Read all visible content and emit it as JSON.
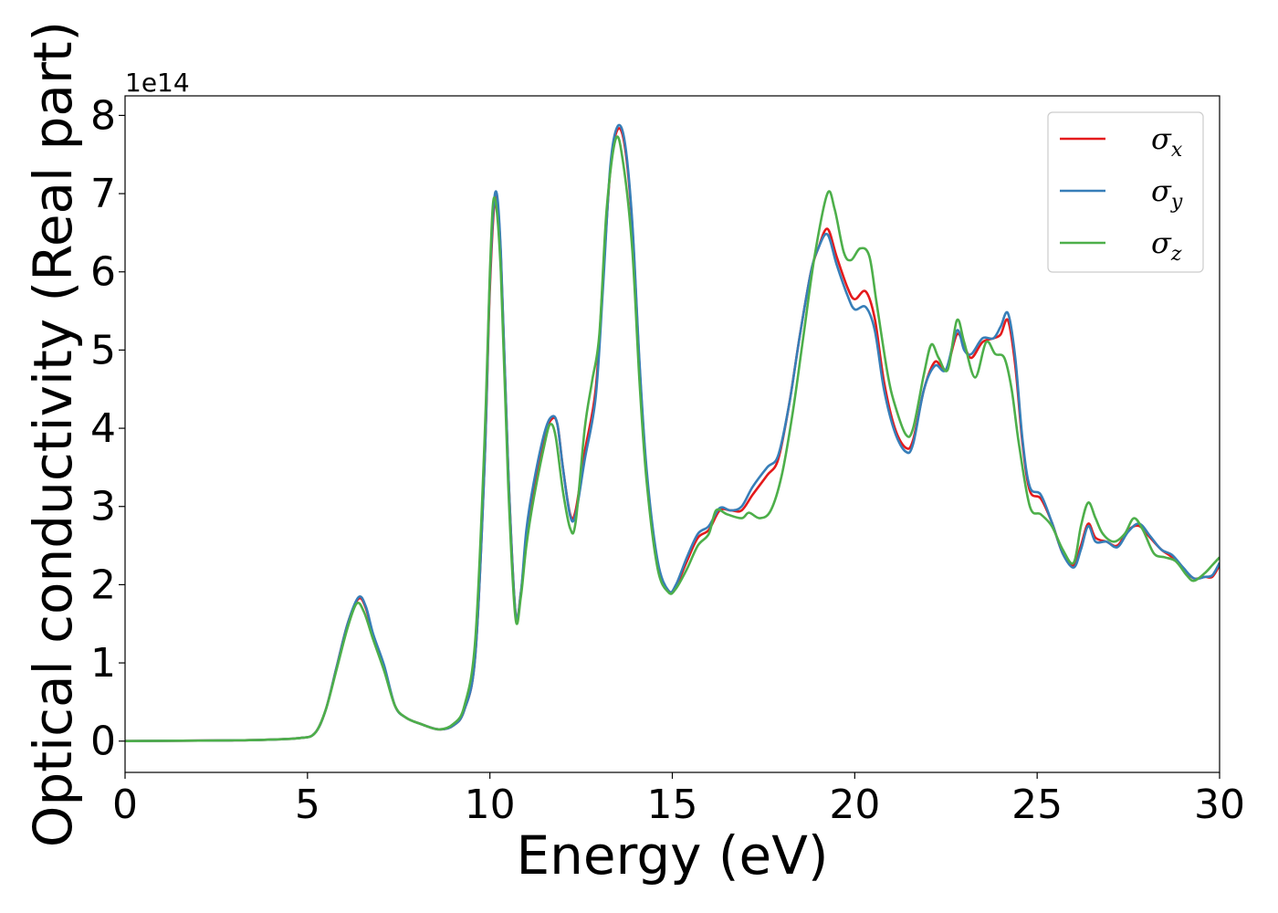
{
  "chart_data": {
    "type": "line",
    "xlabel": "Energy (eV)",
    "ylabel": "Optical conductivity (Real part)",
    "y_offset_label": "1e14",
    "xlim": [
      0,
      30
    ],
    "ylim": [
      -0.4,
      8.25
    ],
    "x_ticks": [
      0,
      5,
      10,
      15,
      20,
      25,
      30
    ],
    "y_ticks": [
      0,
      1,
      2,
      3,
      4,
      5,
      6,
      7,
      8
    ],
    "grid": false,
    "legend_position": "top-right",
    "series": [
      {
        "name": "σ",
        "subscript": "x",
        "color": "#e41a1c",
        "points": [
          [
            0,
            0
          ],
          [
            3,
            0.01
          ],
          [
            4,
            0.02
          ],
          [
            4.8,
            0.04
          ],
          [
            5.2,
            0.1
          ],
          [
            5.5,
            0.4
          ],
          [
            5.8,
            0.95
          ],
          [
            6.1,
            1.5
          ],
          [
            6.4,
            1.82
          ],
          [
            6.6,
            1.7
          ],
          [
            6.8,
            1.35
          ],
          [
            7.1,
            0.95
          ],
          [
            7.4,
            0.45
          ],
          [
            7.7,
            0.3
          ],
          [
            8.1,
            0.22
          ],
          [
            8.6,
            0.15
          ],
          [
            9.0,
            0.2
          ],
          [
            9.3,
            0.4
          ],
          [
            9.6,
            1.1
          ],
          [
            9.85,
            3.5
          ],
          [
            10.0,
            5.8
          ],
          [
            10.15,
            6.95
          ],
          [
            10.3,
            6.2
          ],
          [
            10.5,
            3.5
          ],
          [
            10.7,
            1.65
          ],
          [
            10.85,
            1.9
          ],
          [
            11.0,
            2.6
          ],
          [
            11.2,
            3.2
          ],
          [
            11.5,
            3.9
          ],
          [
            11.7,
            4.12
          ],
          [
            11.85,
            4.05
          ],
          [
            12.0,
            3.5
          ],
          [
            12.2,
            2.9
          ],
          [
            12.35,
            2.95
          ],
          [
            12.6,
            3.7
          ],
          [
            12.9,
            4.5
          ],
          [
            13.1,
            5.9
          ],
          [
            13.3,
            7.3
          ],
          [
            13.5,
            7.82
          ],
          [
            13.7,
            7.6
          ],
          [
            13.9,
            6.6
          ],
          [
            14.1,
            4.8
          ],
          [
            14.3,
            3.4
          ],
          [
            14.6,
            2.25
          ],
          [
            14.9,
            1.92
          ],
          [
            15.1,
            1.98
          ],
          [
            15.4,
            2.3
          ],
          [
            15.7,
            2.6
          ],
          [
            16.0,
            2.7
          ],
          [
            16.3,
            2.95
          ],
          [
            16.6,
            2.95
          ],
          [
            16.9,
            2.95
          ],
          [
            17.2,
            3.15
          ],
          [
            17.6,
            3.4
          ],
          [
            17.9,
            3.6
          ],
          [
            18.2,
            4.3
          ],
          [
            18.5,
            5.2
          ],
          [
            18.8,
            6.0
          ],
          [
            19.0,
            6.3
          ],
          [
            19.25,
            6.55
          ],
          [
            19.5,
            6.2
          ],
          [
            19.8,
            5.8
          ],
          [
            20.0,
            5.65
          ],
          [
            20.3,
            5.75
          ],
          [
            20.55,
            5.4
          ],
          [
            20.8,
            4.6
          ],
          [
            21.1,
            4.0
          ],
          [
            21.4,
            3.75
          ],
          [
            21.6,
            3.85
          ],
          [
            21.9,
            4.5
          ],
          [
            22.2,
            4.85
          ],
          [
            22.5,
            4.75
          ],
          [
            22.8,
            5.2
          ],
          [
            23.0,
            5.05
          ],
          [
            23.2,
            4.9
          ],
          [
            23.5,
            5.1
          ],
          [
            23.8,
            5.15
          ],
          [
            24.0,
            5.2
          ],
          [
            24.2,
            5.38
          ],
          [
            24.4,
            4.8
          ],
          [
            24.6,
            3.8
          ],
          [
            24.8,
            3.2
          ],
          [
            25.1,
            3.1
          ],
          [
            25.4,
            2.8
          ],
          [
            25.7,
            2.4
          ],
          [
            26.0,
            2.25
          ],
          [
            26.2,
            2.5
          ],
          [
            26.4,
            2.78
          ],
          [
            26.6,
            2.6
          ],
          [
            26.9,
            2.55
          ],
          [
            27.2,
            2.5
          ],
          [
            27.5,
            2.7
          ],
          [
            27.8,
            2.75
          ],
          [
            28.1,
            2.6
          ],
          [
            28.4,
            2.45
          ],
          [
            28.7,
            2.35
          ],
          [
            29.0,
            2.2
          ],
          [
            29.3,
            2.08
          ],
          [
            29.6,
            2.1
          ],
          [
            29.8,
            2.1
          ],
          [
            30.0,
            2.25
          ]
        ]
      },
      {
        "name": "σ",
        "subscript": "y",
        "color": "#377eb8",
        "points": [
          [
            0,
            0
          ],
          [
            3,
            0.01
          ],
          [
            4,
            0.02
          ],
          [
            4.8,
            0.04
          ],
          [
            5.2,
            0.1
          ],
          [
            5.5,
            0.4
          ],
          [
            5.8,
            0.95
          ],
          [
            6.1,
            1.5
          ],
          [
            6.4,
            1.84
          ],
          [
            6.6,
            1.72
          ],
          [
            6.8,
            1.37
          ],
          [
            7.1,
            0.97
          ],
          [
            7.4,
            0.45
          ],
          [
            7.7,
            0.3
          ],
          [
            8.1,
            0.22
          ],
          [
            8.6,
            0.15
          ],
          [
            9.0,
            0.2
          ],
          [
            9.3,
            0.4
          ],
          [
            9.6,
            1.1
          ],
          [
            9.85,
            3.5
          ],
          [
            10.0,
            5.9
          ],
          [
            10.15,
            7.02
          ],
          [
            10.3,
            6.25
          ],
          [
            10.5,
            3.5
          ],
          [
            10.7,
            1.65
          ],
          [
            10.85,
            1.9
          ],
          [
            11.0,
            2.7
          ],
          [
            11.2,
            3.3
          ],
          [
            11.5,
            3.95
          ],
          [
            11.7,
            4.15
          ],
          [
            11.85,
            4.05
          ],
          [
            12.0,
            3.5
          ],
          [
            12.2,
            2.88
          ],
          [
            12.35,
            2.9
          ],
          [
            12.6,
            3.6
          ],
          [
            12.9,
            4.4
          ],
          [
            13.1,
            5.8
          ],
          [
            13.3,
            7.35
          ],
          [
            13.5,
            7.86
          ],
          [
            13.7,
            7.65
          ],
          [
            13.9,
            6.65
          ],
          [
            14.1,
            4.85
          ],
          [
            14.3,
            3.45
          ],
          [
            14.6,
            2.3
          ],
          [
            14.9,
            1.92
          ],
          [
            15.1,
            2.0
          ],
          [
            15.4,
            2.35
          ],
          [
            15.7,
            2.65
          ],
          [
            16.0,
            2.75
          ],
          [
            16.3,
            2.98
          ],
          [
            16.6,
            2.95
          ],
          [
            16.9,
            3.0
          ],
          [
            17.2,
            3.25
          ],
          [
            17.6,
            3.5
          ],
          [
            17.9,
            3.65
          ],
          [
            18.2,
            4.3
          ],
          [
            18.5,
            5.2
          ],
          [
            18.8,
            6.0
          ],
          [
            19.0,
            6.3
          ],
          [
            19.25,
            6.48
          ],
          [
            19.5,
            6.1
          ],
          [
            19.8,
            5.7
          ],
          [
            20.0,
            5.52
          ],
          [
            20.3,
            5.55
          ],
          [
            20.55,
            5.25
          ],
          [
            20.8,
            4.5
          ],
          [
            21.1,
            3.95
          ],
          [
            21.4,
            3.7
          ],
          [
            21.6,
            3.8
          ],
          [
            21.9,
            4.5
          ],
          [
            22.2,
            4.8
          ],
          [
            22.5,
            4.75
          ],
          [
            22.8,
            5.25
          ],
          [
            23.0,
            5.0
          ],
          [
            23.2,
            4.95
          ],
          [
            23.5,
            5.15
          ],
          [
            23.8,
            5.15
          ],
          [
            24.0,
            5.3
          ],
          [
            24.2,
            5.47
          ],
          [
            24.4,
            4.9
          ],
          [
            24.6,
            3.85
          ],
          [
            24.8,
            3.25
          ],
          [
            25.1,
            3.15
          ],
          [
            25.4,
            2.8
          ],
          [
            25.7,
            2.4
          ],
          [
            26.0,
            2.22
          ],
          [
            26.2,
            2.45
          ],
          [
            26.4,
            2.75
          ],
          [
            26.6,
            2.55
          ],
          [
            26.9,
            2.55
          ],
          [
            27.2,
            2.48
          ],
          [
            27.5,
            2.68
          ],
          [
            27.8,
            2.78
          ],
          [
            28.1,
            2.62
          ],
          [
            28.4,
            2.45
          ],
          [
            28.7,
            2.38
          ],
          [
            29.0,
            2.22
          ],
          [
            29.3,
            2.08
          ],
          [
            29.6,
            2.1
          ],
          [
            29.8,
            2.12
          ],
          [
            30.0,
            2.28
          ]
        ]
      },
      {
        "name": "σ",
        "subscript": "z",
        "color": "#4daf4a",
        "points": [
          [
            0,
            0
          ],
          [
            3,
            0.01
          ],
          [
            4,
            0.02
          ],
          [
            4.8,
            0.04
          ],
          [
            5.2,
            0.1
          ],
          [
            5.5,
            0.4
          ],
          [
            5.8,
            0.92
          ],
          [
            6.1,
            1.45
          ],
          [
            6.35,
            1.76
          ],
          [
            6.55,
            1.65
          ],
          [
            6.8,
            1.3
          ],
          [
            7.1,
            0.9
          ],
          [
            7.4,
            0.45
          ],
          [
            7.7,
            0.3
          ],
          [
            8.1,
            0.22
          ],
          [
            8.6,
            0.15
          ],
          [
            9.0,
            0.22
          ],
          [
            9.3,
            0.45
          ],
          [
            9.6,
            1.3
          ],
          [
            9.85,
            3.8
          ],
          [
            10.0,
            6.0
          ],
          [
            10.12,
            6.95
          ],
          [
            10.3,
            6.0
          ],
          [
            10.5,
            3.3
          ],
          [
            10.7,
            1.58
          ],
          [
            10.85,
            1.85
          ],
          [
            11.0,
            2.5
          ],
          [
            11.2,
            3.1
          ],
          [
            11.5,
            3.8
          ],
          [
            11.65,
            4.05
          ],
          [
            11.8,
            3.9
          ],
          [
            12.0,
            3.2
          ],
          [
            12.2,
            2.72
          ],
          [
            12.35,
            2.8
          ],
          [
            12.6,
            4.0
          ],
          [
            12.8,
            4.6
          ],
          [
            13.0,
            5.2
          ],
          [
            13.2,
            6.8
          ],
          [
            13.45,
            7.7
          ],
          [
            13.65,
            7.4
          ],
          [
            13.9,
            6.3
          ],
          [
            14.1,
            4.6
          ],
          [
            14.3,
            3.3
          ],
          [
            14.6,
            2.2
          ],
          [
            14.9,
            1.9
          ],
          [
            15.1,
            1.95
          ],
          [
            15.4,
            2.2
          ],
          [
            15.7,
            2.5
          ],
          [
            16.0,
            2.65
          ],
          [
            16.2,
            2.95
          ],
          [
            16.5,
            2.9
          ],
          [
            16.9,
            2.85
          ],
          [
            17.1,
            2.92
          ],
          [
            17.4,
            2.85
          ],
          [
            17.7,
            2.95
          ],
          [
            18.0,
            3.4
          ],
          [
            18.3,
            4.2
          ],
          [
            18.6,
            5.2
          ],
          [
            18.9,
            6.2
          ],
          [
            19.25,
            7.0
          ],
          [
            19.45,
            6.8
          ],
          [
            19.7,
            6.25
          ],
          [
            19.9,
            6.15
          ],
          [
            20.15,
            6.3
          ],
          [
            20.4,
            6.2
          ],
          [
            20.6,
            5.6
          ],
          [
            20.9,
            4.7
          ],
          [
            21.1,
            4.3
          ],
          [
            21.4,
            3.92
          ],
          [
            21.6,
            4.0
          ],
          [
            21.9,
            4.7
          ],
          [
            22.1,
            5.07
          ],
          [
            22.3,
            4.9
          ],
          [
            22.55,
            4.75
          ],
          [
            22.8,
            5.38
          ],
          [
            23.0,
            5.1
          ],
          [
            23.3,
            4.65
          ],
          [
            23.6,
            5.1
          ],
          [
            23.85,
            4.95
          ],
          [
            24.1,
            4.9
          ],
          [
            24.3,
            4.5
          ],
          [
            24.5,
            3.8
          ],
          [
            24.8,
            3.0
          ],
          [
            25.1,
            2.9
          ],
          [
            25.4,
            2.75
          ],
          [
            25.7,
            2.45
          ],
          [
            26.0,
            2.28
          ],
          [
            26.2,
            2.75
          ],
          [
            26.4,
            3.05
          ],
          [
            26.6,
            2.85
          ],
          [
            26.8,
            2.65
          ],
          [
            27.1,
            2.55
          ],
          [
            27.4,
            2.65
          ],
          [
            27.65,
            2.85
          ],
          [
            27.9,
            2.7
          ],
          [
            28.2,
            2.4
          ],
          [
            28.5,
            2.35
          ],
          [
            28.8,
            2.3
          ],
          [
            29.1,
            2.12
          ],
          [
            29.3,
            2.05
          ],
          [
            29.6,
            2.15
          ],
          [
            29.8,
            2.25
          ],
          [
            30.0,
            2.35
          ]
        ]
      }
    ]
  }
}
